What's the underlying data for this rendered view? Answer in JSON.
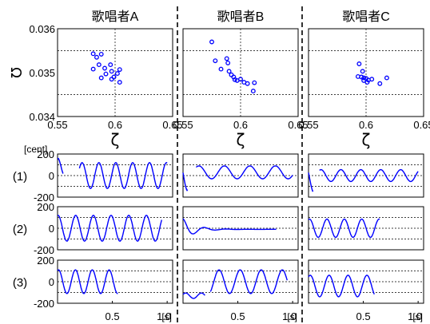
{
  "figure": {
    "singers": [
      "歌唱者A",
      "歌唱者B",
      "歌唱者C"
    ],
    "scatter_ylabel": "Ω",
    "scatter_xlabel": "ζ",
    "unit_label": "[cent]",
    "row_labels": [
      "(1)",
      "(2)",
      "(3)"
    ],
    "time_ticks": [
      "0.5",
      "1.0"
    ],
    "time_unit": "[s]",
    "colors": {
      "data": "#0000ff",
      "axis": "#000000",
      "grid": "#000000"
    }
  },
  "chart_data": [
    {
      "type": "scatter",
      "panel": "scatter-A",
      "xlim": [
        0.55,
        0.65
      ],
      "ylim": [
        0.034,
        0.036
      ],
      "xticks": [
        "0.55",
        "0.6",
        "0.65"
      ],
      "yticks": [
        "0.034",
        "0.035",
        "0.036"
      ],
      "grid": true,
      "points": [
        [
          0.581,
          0.03543
        ],
        [
          0.588,
          0.03542
        ],
        [
          0.584,
          0.03535
        ],
        [
          0.586,
          0.03518
        ],
        [
          0.581,
          0.03508
        ],
        [
          0.591,
          0.0351
        ],
        [
          0.596,
          0.03518
        ],
        [
          0.597,
          0.03503
        ],
        [
          0.592,
          0.03497
        ],
        [
          0.588,
          0.03488
        ],
        [
          0.597,
          0.03485
        ],
        [
          0.599,
          0.0349
        ],
        [
          0.602,
          0.03498
        ],
        [
          0.604,
          0.03507
        ],
        [
          0.604,
          0.03478
        ]
      ]
    },
    {
      "type": "scatter",
      "panel": "scatter-B",
      "xlim": [
        0.55,
        0.65
      ],
      "ylim": [
        0.034,
        0.036
      ],
      "xticks": [
        "0.55",
        "0.6",
        "0.65"
      ],
      "yticks": [
        "0.034",
        "0.035",
        "0.036"
      ],
      "grid": true,
      "points": [
        [
          0.575,
          0.0357
        ],
        [
          0.578,
          0.03527
        ],
        [
          0.588,
          0.03532
        ],
        [
          0.589,
          0.03522
        ],
        [
          0.583,
          0.03508
        ],
        [
          0.59,
          0.03503
        ],
        [
          0.592,
          0.03495
        ],
        [
          0.594,
          0.0349
        ],
        [
          0.595,
          0.03484
        ],
        [
          0.597,
          0.03482
        ],
        [
          0.6,
          0.03485
        ],
        [
          0.603,
          0.03478
        ],
        [
          0.606,
          0.03475
        ],
        [
          0.612,
          0.03477
        ],
        [
          0.611,
          0.03458
        ]
      ]
    },
    {
      "type": "scatter",
      "panel": "scatter-C",
      "xlim": [
        0.55,
        0.65
      ],
      "ylim": [
        0.034,
        0.036
      ],
      "xticks": [
        "0.55",
        "0.6",
        "0.65"
      ],
      "yticks": [
        "0.034",
        "0.035",
        "0.036"
      ],
      "grid": true,
      "points": [
        [
          0.594,
          0.0352
        ],
        [
          0.597,
          0.03503
        ],
        [
          0.593,
          0.03491
        ],
        [
          0.596,
          0.0349
        ],
        [
          0.598,
          0.03488
        ],
        [
          0.6,
          0.03487
        ],
        [
          0.598,
          0.03482
        ],
        [
          0.602,
          0.03483
        ],
        [
          0.601,
          0.03478
        ],
        [
          0.605,
          0.03485
        ],
        [
          0.612,
          0.03475
        ],
        [
          0.618,
          0.03488
        ]
      ]
    },
    {
      "type": "line",
      "panel": "A1",
      "xlim": [
        0,
        1.05
      ],
      "ylim": [
        -200,
        200
      ],
      "yticks": [
        "200",
        "0",
        "-200"
      ],
      "segments": [
        {
          "start": 0.0,
          "end": 0.05,
          "y0": 80,
          "amp": 80,
          "freq": 8,
          "phase": 1.5,
          "damp": 0
        },
        {
          "start": 0.2,
          "end": 1.0,
          "y0": 0,
          "amp": 120,
          "freq": 6.5,
          "phase": 0.6,
          "damp": 0
        }
      ]
    },
    {
      "type": "line",
      "panel": "B1",
      "xlim": [
        0,
        1.05
      ],
      "ylim": [
        -200,
        200
      ],
      "yticks": [
        "200",
        "0",
        "-200"
      ],
      "segments": [
        {
          "start": 0.0,
          "end": 0.04,
          "y0": 20,
          "amp": 160,
          "freq": 6,
          "phase": 3.1,
          "damp": 0
        },
        {
          "start": 0.12,
          "end": 1.0,
          "y0": 30,
          "amp": 60,
          "freq": 4.3,
          "phase": 0.9,
          "damp": 0
        }
      ]
    },
    {
      "type": "line",
      "panel": "C1",
      "xlim": [
        0,
        1.05
      ],
      "ylim": [
        -200,
        200
      ],
      "yticks": [
        "200",
        "0",
        "-200"
      ],
      "segments": [
        {
          "start": 0.0,
          "end": 0.04,
          "y0": -20,
          "amp": 140,
          "freq": 6,
          "phase": 2.8,
          "damp": 0
        },
        {
          "start": 0.1,
          "end": 1.0,
          "y0": 0,
          "amp": 55,
          "freq": 5.5,
          "phase": 1.1,
          "damp": 0
        }
      ]
    },
    {
      "type": "line",
      "panel": "A2",
      "xlim": [
        0,
        1.05
      ],
      "ylim": [
        -200,
        200
      ],
      "yticks": [
        "200",
        "0",
        "-200"
      ],
      "segments": [
        {
          "start": 0.0,
          "end": 0.95,
          "y0": 0,
          "amp": 120,
          "freq": 6.2,
          "phase": 1.4,
          "damp": 0
        }
      ]
    },
    {
      "type": "line",
      "panel": "B2",
      "xlim": [
        0,
        1.05
      ],
      "ylim": [
        -200,
        200
      ],
      "yticks": [
        "200",
        "0",
        "-200"
      ],
      "segments": [
        {
          "start": 0.0,
          "end": 0.85,
          "y0": -10,
          "amp": 100,
          "freq": 5,
          "phase": 1.6,
          "damp": 9
        }
      ]
    },
    {
      "type": "line",
      "panel": "C2",
      "xlim": [
        0,
        1.05
      ],
      "ylim": [
        -200,
        200
      ],
      "yticks": [
        "200",
        "0",
        "-200"
      ],
      "segments": [
        {
          "start": 0.0,
          "end": 0.65,
          "y0": 0,
          "amp": 85,
          "freq": 6.3,
          "phase": 1.2,
          "damp": 0
        }
      ]
    },
    {
      "type": "line",
      "panel": "A3",
      "xlim": [
        0,
        1.05
      ],
      "ylim": [
        -200,
        200
      ],
      "yticks": [
        "200",
        "0",
        "-200"
      ],
      "segments": [
        {
          "start": 0.0,
          "end": 0.55,
          "y0": 0,
          "amp": 110,
          "freq": 6.5,
          "phase": 1.2,
          "damp": 0
        }
      ]
    },
    {
      "type": "line",
      "panel": "B3",
      "xlim": [
        0,
        1.05
      ],
      "ylim": [
        -200,
        200
      ],
      "yticks": [
        "200",
        "0",
        "-200"
      ],
      "segments": [
        {
          "start": 0.0,
          "end": 0.2,
          "y0": -130,
          "amp": 25,
          "freq": 7,
          "phase": 0.5,
          "damp": 0
        },
        {
          "start": 0.25,
          "end": 0.95,
          "y0": 0,
          "amp": 110,
          "freq": 5.2,
          "phase": -1.0,
          "damp": 0
        }
      ]
    },
    {
      "type": "line",
      "panel": "C3",
      "xlim": [
        0,
        1.05
      ],
      "ylim": [
        -200,
        200
      ],
      "yticks": [
        "200",
        "0",
        "-200"
      ],
      "segments": [
        {
          "start": 0.0,
          "end": 0.6,
          "y0": -40,
          "amp": 100,
          "freq": 5.8,
          "phase": 1.0,
          "damp": 0
        }
      ]
    }
  ]
}
